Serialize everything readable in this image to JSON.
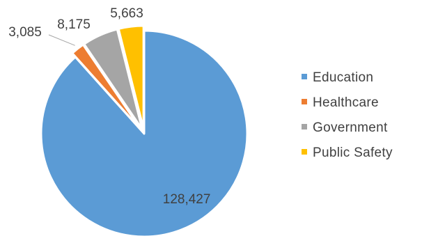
{
  "chart_data": {
    "type": "pie",
    "categories": [
      "Education",
      "Healthcare",
      "Government",
      "Public Safety"
    ],
    "values": [
      128427,
      3085,
      8175,
      5663
    ],
    "value_labels": [
      "128,427",
      "3,085",
      "8,175",
      "5,663"
    ],
    "colors": [
      "#5B9BD5",
      "#ED7D31",
      "#A5A5A5",
      "#FFC000"
    ],
    "exploded": [
      false,
      true,
      true,
      true
    ],
    "legend_position": "right",
    "title": ""
  }
}
